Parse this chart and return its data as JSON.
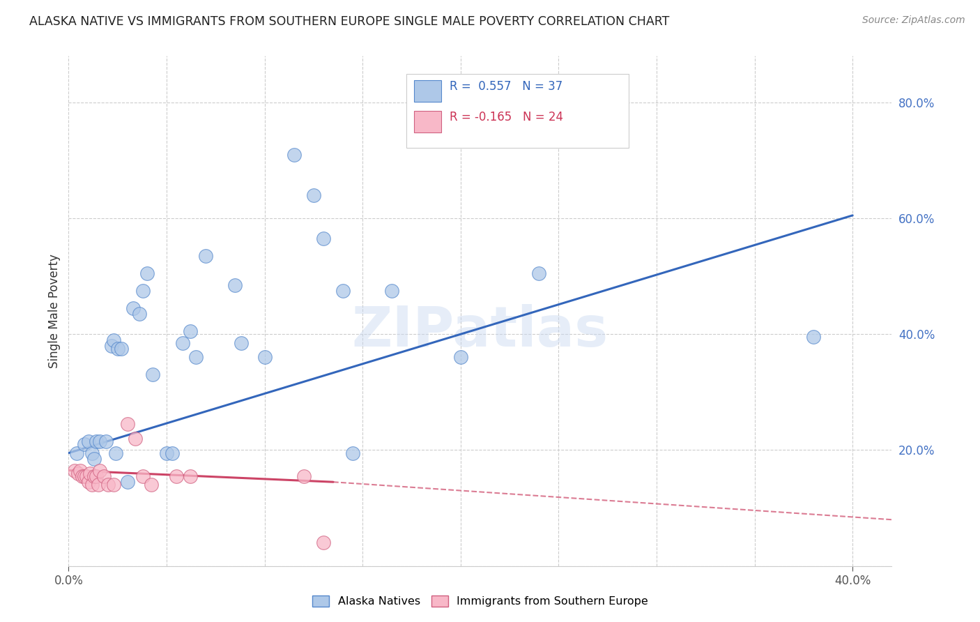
{
  "title": "ALASKA NATIVE VS IMMIGRANTS FROM SOUTHERN EUROPE SINGLE MALE POVERTY CORRELATION CHART",
  "source": "Source: ZipAtlas.com",
  "ylabel": "Single Male Poverty",
  "watermark": "ZIPatlas",
  "xlim": [
    0.0,
    0.42
  ],
  "ylim": [
    0.0,
    0.88
  ],
  "x_ticks": [
    0.0,
    0.05,
    0.1,
    0.15,
    0.2,
    0.25,
    0.3,
    0.35,
    0.4
  ],
  "y_ticks_right": [
    0.0,
    0.2,
    0.4,
    0.6,
    0.8
  ],
  "y_tick_labels_right": [
    "",
    "20.0%",
    "40.0%",
    "60.0%",
    "80.0%"
  ],
  "blue_color": "#aec8e8",
  "blue_edge": "#5588cc",
  "pink_color": "#f8b8c8",
  "pink_edge": "#d06080",
  "line_blue": "#3366bb",
  "line_pink": "#cc4466",
  "blue_scatter": [
    [
      0.004,
      0.195
    ],
    [
      0.008,
      0.21
    ],
    [
      0.01,
      0.215
    ],
    [
      0.012,
      0.195
    ],
    [
      0.013,
      0.185
    ],
    [
      0.014,
      0.215
    ],
    [
      0.016,
      0.215
    ],
    [
      0.019,
      0.215
    ],
    [
      0.022,
      0.38
    ],
    [
      0.023,
      0.39
    ],
    [
      0.024,
      0.195
    ],
    [
      0.025,
      0.375
    ],
    [
      0.027,
      0.375
    ],
    [
      0.03,
      0.145
    ],
    [
      0.033,
      0.445
    ],
    [
      0.036,
      0.435
    ],
    [
      0.038,
      0.475
    ],
    [
      0.04,
      0.505
    ],
    [
      0.043,
      0.33
    ],
    [
      0.05,
      0.195
    ],
    [
      0.053,
      0.195
    ],
    [
      0.058,
      0.385
    ],
    [
      0.062,
      0.405
    ],
    [
      0.065,
      0.36
    ],
    [
      0.07,
      0.535
    ],
    [
      0.085,
      0.485
    ],
    [
      0.088,
      0.385
    ],
    [
      0.1,
      0.36
    ],
    [
      0.115,
      0.71
    ],
    [
      0.125,
      0.64
    ],
    [
      0.13,
      0.565
    ],
    [
      0.14,
      0.475
    ],
    [
      0.145,
      0.195
    ],
    [
      0.165,
      0.475
    ],
    [
      0.2,
      0.36
    ],
    [
      0.24,
      0.505
    ],
    [
      0.38,
      0.395
    ]
  ],
  "pink_scatter": [
    [
      0.003,
      0.165
    ],
    [
      0.005,
      0.16
    ],
    [
      0.006,
      0.165
    ],
    [
      0.007,
      0.155
    ],
    [
      0.008,
      0.155
    ],
    [
      0.009,
      0.155
    ],
    [
      0.01,
      0.145
    ],
    [
      0.011,
      0.16
    ],
    [
      0.012,
      0.14
    ],
    [
      0.013,
      0.155
    ],
    [
      0.014,
      0.155
    ],
    [
      0.015,
      0.14
    ],
    [
      0.016,
      0.165
    ],
    [
      0.018,
      0.155
    ],
    [
      0.02,
      0.14
    ],
    [
      0.023,
      0.14
    ],
    [
      0.03,
      0.245
    ],
    [
      0.034,
      0.22
    ],
    [
      0.038,
      0.155
    ],
    [
      0.042,
      0.14
    ],
    [
      0.055,
      0.155
    ],
    [
      0.062,
      0.155
    ],
    [
      0.12,
      0.155
    ],
    [
      0.13,
      0.04
    ]
  ],
  "blue_line": {
    "x0": 0.0,
    "x1": 0.4,
    "y0": 0.195,
    "y1": 0.605
  },
  "pink_line_solid": {
    "x0": 0.0,
    "x1": 0.135,
    "y0": 0.165,
    "y1": 0.145
  },
  "pink_line_dashed": {
    "x0": 0.135,
    "x1": 0.42,
    "y0": 0.145,
    "y1": 0.08
  },
  "background_color": "#ffffff",
  "grid_color": "#cccccc",
  "legend_blue_label": "R =  0.557   N = 37",
  "legend_pink_label": "R = -0.165   N = 24",
  "bottom_legend_blue": "Alaska Natives",
  "bottom_legend_pink": "Immigrants from Southern Europe"
}
